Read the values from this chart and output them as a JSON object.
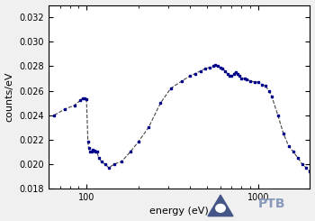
{
  "title": "",
  "xlabel": "energy (eV)",
  "ylabel": "counts/eV",
  "xlim": [
    60,
    2000
  ],
  "ylim": [
    0.018,
    0.033
  ],
  "yticks": [
    0.018,
    0.02,
    0.022,
    0.024,
    0.026,
    0.028,
    0.03,
    0.032
  ],
  "line_color": "#00008B",
  "dash_color": "#333333",
  "background_color": "#f0f0f0",
  "x_data": [
    65,
    75,
    85,
    92,
    95,
    98,
    100,
    102,
    103,
    105,
    107,
    109,
    111,
    113,
    115,
    118,
    122,
    128,
    135,
    145,
    160,
    180,
    200,
    230,
    270,
    310,
    360,
    400,
    430,
    460,
    490,
    520,
    545,
    560,
    580,
    600,
    620,
    640,
    660,
    680,
    700,
    720,
    740,
    760,
    780,
    800,
    830,
    860,
    900,
    950,
    1000,
    1050,
    1100,
    1150,
    1200,
    1300,
    1400,
    1500,
    1600,
    1700,
    1800,
    1900,
    2000
  ],
  "y_data": [
    0.024,
    0.0245,
    0.0248,
    0.0252,
    0.0254,
    0.0254,
    0.0253,
    0.0218,
    0.0213,
    0.021,
    0.021,
    0.0212,
    0.0211,
    0.021,
    0.021,
    0.0205,
    0.0202,
    0.02,
    0.0197,
    0.02,
    0.0202,
    0.021,
    0.0218,
    0.023,
    0.025,
    0.0262,
    0.0268,
    0.0272,
    0.0274,
    0.0276,
    0.0278,
    0.0279,
    0.028,
    0.0281,
    0.028,
    0.0279,
    0.0278,
    0.0276,
    0.0274,
    0.0272,
    0.0272,
    0.0274,
    0.0275,
    0.0274,
    0.0272,
    0.027,
    0.027,
    0.0269,
    0.0268,
    0.0267,
    0.0267,
    0.0265,
    0.0264,
    0.026,
    0.0255,
    0.024,
    0.0225,
    0.0215,
    0.021,
    0.0205,
    0.02,
    0.0197,
    0.0194
  ]
}
